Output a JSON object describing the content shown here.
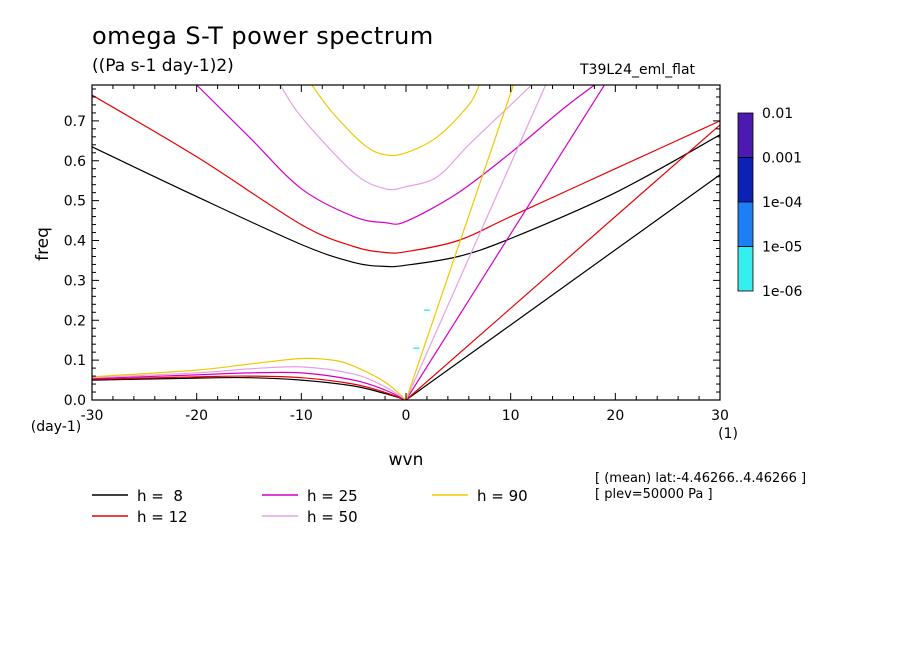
{
  "chart_data": {
    "type": "line",
    "title": "omega S-T power spectrum",
    "subtitle": "((Pa s-1 day-1)2)",
    "experiment": "T39L24_eml_flat",
    "xlabel": "wvn",
    "ylabel": "freq",
    "xunit": "(1)",
    "yunit": "(day-1)",
    "xlim": [
      -30,
      30
    ],
    "ylim": [
      0,
      0.79
    ],
    "xticks": [
      -30,
      -20,
      -10,
      0,
      10,
      20,
      30
    ],
    "xtick_labels": [
      "-30",
      "-20",
      "-10",
      "0",
      "10",
      "20",
      "30"
    ],
    "yticks": [
      0,
      0.1,
      0.2,
      0.3,
      0.4,
      0.5,
      0.6,
      0.7
    ],
    "ytick_labels": [
      "0.0",
      "0.1",
      "0.2",
      "0.3",
      "0.4",
      "0.5",
      "0.6",
      "0.7"
    ],
    "meta_lines": [
      "[ (mean) lat:-4.46266..4.46266 ]",
      "[ plev=50000 Pa ]"
    ],
    "colorbar": {
      "labels": [
        "0.01",
        "0.001",
        "1e-04",
        "1e-05",
        "1e-06"
      ],
      "colors": [
        "#4c1ab0",
        "#0c22b4",
        "#1e7ef5",
        "#34eef0"
      ]
    },
    "series": [
      {
        "name": "h =  8",
        "h": 8,
        "color": "#000000"
      },
      {
        "name": "h = 12",
        "h": 12,
        "color": "#e60000"
      },
      {
        "name": "h = 25",
        "h": 25,
        "color": "#d400c8"
      },
      {
        "name": "h = 50",
        "h": 50,
        "color": "#e6a0e6"
      },
      {
        "name": "h = 90",
        "h": 90,
        "color": "#f0c800"
      }
    ],
    "curves": {
      "kelvin": {
        "h8": [
          [
            0,
            0
          ],
          [
            30,
            0.565
          ]
        ],
        "h12": [
          [
            0,
            0
          ],
          [
            30,
            0.69
          ]
        ],
        "h25": [
          [
            0,
            0
          ],
          [
            18,
            0.75
          ],
          [
            19,
            0.79
          ]
        ],
        "h50": [
          [
            0,
            0
          ],
          [
            13,
            0.77
          ],
          [
            13.4,
            0.79
          ]
        ],
        "h90": [
          [
            0,
            0
          ],
          [
            10,
            0.77
          ],
          [
            10.3,
            0.79
          ]
        ]
      },
      "inertio_gravity": {
        "h8": [
          [
            -30,
            0.635
          ],
          [
            -20,
            0.51
          ],
          [
            -10,
            0.39
          ],
          [
            -5,
            0.345
          ],
          [
            -2,
            0.335
          ],
          [
            0,
            0.338
          ],
          [
            5,
            0.36
          ],
          [
            10,
            0.405
          ],
          [
            20,
            0.52
          ],
          [
            30,
            0.665
          ]
        ],
        "h12": [
          [
            -30,
            0.765
          ],
          [
            -20,
            0.61
          ],
          [
            -10,
            0.44
          ],
          [
            -5,
            0.385
          ],
          [
            -2,
            0.37
          ],
          [
            0,
            0.372
          ],
          [
            5,
            0.4
          ],
          [
            10,
            0.46
          ],
          [
            20,
            0.58
          ],
          [
            30,
            0.7
          ]
        ],
        "h25": [
          [
            -20,
            0.79
          ],
          [
            -15,
            0.66
          ],
          [
            -10,
            0.53
          ],
          [
            -5,
            0.46
          ],
          [
            -2,
            0.445
          ],
          [
            0,
            0.448
          ],
          [
            5,
            0.52
          ],
          [
            10,
            0.62
          ],
          [
            15,
            0.73
          ],
          [
            18,
            0.79
          ]
        ],
        "h50": [
          [
            -12,
            0.79
          ],
          [
            -10,
            0.71
          ],
          [
            -5,
            0.57
          ],
          [
            -2,
            0.53
          ],
          [
            0,
            0.535
          ],
          [
            3,
            0.56
          ],
          [
            6,
            0.64
          ],
          [
            10,
            0.74
          ],
          [
            12,
            0.79
          ]
        ],
        "h90": [
          [
            -9,
            0.79
          ],
          [
            -7,
            0.72
          ],
          [
            -4,
            0.64
          ],
          [
            -2,
            0.615
          ],
          [
            0,
            0.62
          ],
          [
            3,
            0.66
          ],
          [
            6,
            0.74
          ],
          [
            7,
            0.79
          ]
        ]
      },
      "mrg": {
        "h8": [
          [
            -30,
            0.05
          ],
          [
            -20,
            0.055
          ],
          [
            -15,
            0.056
          ],
          [
            -10,
            0.05
          ],
          [
            -5,
            0.035
          ],
          [
            -2,
            0.016
          ],
          [
            0,
            0
          ]
        ],
        "h12": [
          [
            -30,
            0.052
          ],
          [
            -20,
            0.058
          ],
          [
            -15,
            0.06
          ],
          [
            -10,
            0.056
          ],
          [
            -5,
            0.04
          ],
          [
            -2,
            0.019
          ],
          [
            0,
            0
          ]
        ],
        "h25": [
          [
            -30,
            0.054
          ],
          [
            -20,
            0.063
          ],
          [
            -15,
            0.068
          ],
          [
            -10,
            0.068
          ],
          [
            -5,
            0.05
          ],
          [
            -2,
            0.025
          ],
          [
            0,
            0
          ]
        ],
        "h50": [
          [
            -30,
            0.056
          ],
          [
            -20,
            0.068
          ],
          [
            -15,
            0.078
          ],
          [
            -10,
            0.083
          ],
          [
            -5,
            0.065
          ],
          [
            -2,
            0.033
          ],
          [
            0,
            0
          ]
        ],
        "h90": [
          [
            -30,
            0.058
          ],
          [
            -20,
            0.075
          ],
          [
            -15,
            0.09
          ],
          [
            -10,
            0.104
          ],
          [
            -7,
            0.1
          ],
          [
            -5,
            0.085
          ],
          [
            -2,
            0.045
          ],
          [
            0,
            0
          ]
        ]
      }
    },
    "contours_1e-06": [
      {
        "x": 2.0,
        "y": 0.225
      },
      {
        "x": 1.0,
        "y": 0.13
      }
    ]
  }
}
